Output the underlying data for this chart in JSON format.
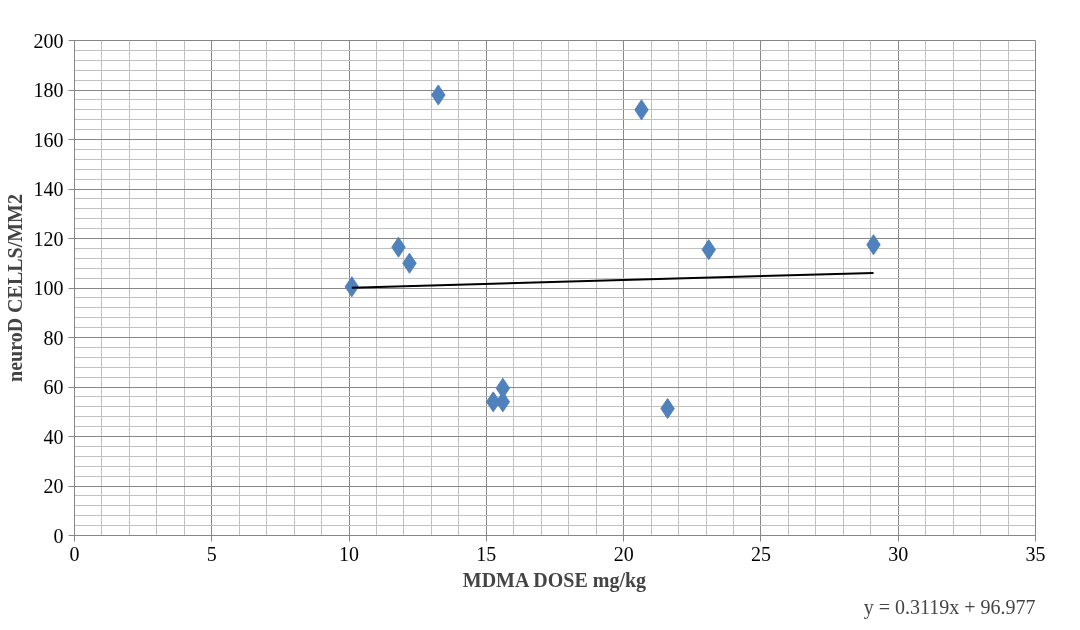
{
  "chart_data": {
    "type": "scatter",
    "xlabel": "MDMA DOSE mg/kg",
    "ylabel": "neuroD CELLS/MM2",
    "xlim": [
      0,
      35
    ],
    "xticks": [
      0,
      5,
      10,
      15,
      20,
      25,
      30,
      35
    ],
    "ylim": [
      0,
      200
    ],
    "yticks": [
      0,
      20,
      40,
      60,
      80,
      100,
      120,
      140,
      160,
      180,
      200
    ],
    "grid": true,
    "marker": "diamond",
    "series": [
      {
        "color": "#4f81bd",
        "x": [
          10.1,
          11.8,
          12.2,
          13.25,
          15.25,
          15.6,
          15.6,
          20.65,
          21.6,
          23.1,
          29.1
        ],
        "values": [
          100.5,
          116.5,
          110,
          178,
          54,
          54,
          59.5,
          172,
          51.3,
          115.5,
          117.5
        ]
      },
      {
        "type": "line",
        "marker": "none",
        "color": "#000000",
        "x": [
          10.1,
          29.1
        ],
        "values": [
          100.1,
          106.1
        ]
      }
    ],
    "annotations": [
      "y = 0.3119x + 96.977"
    ]
  }
}
